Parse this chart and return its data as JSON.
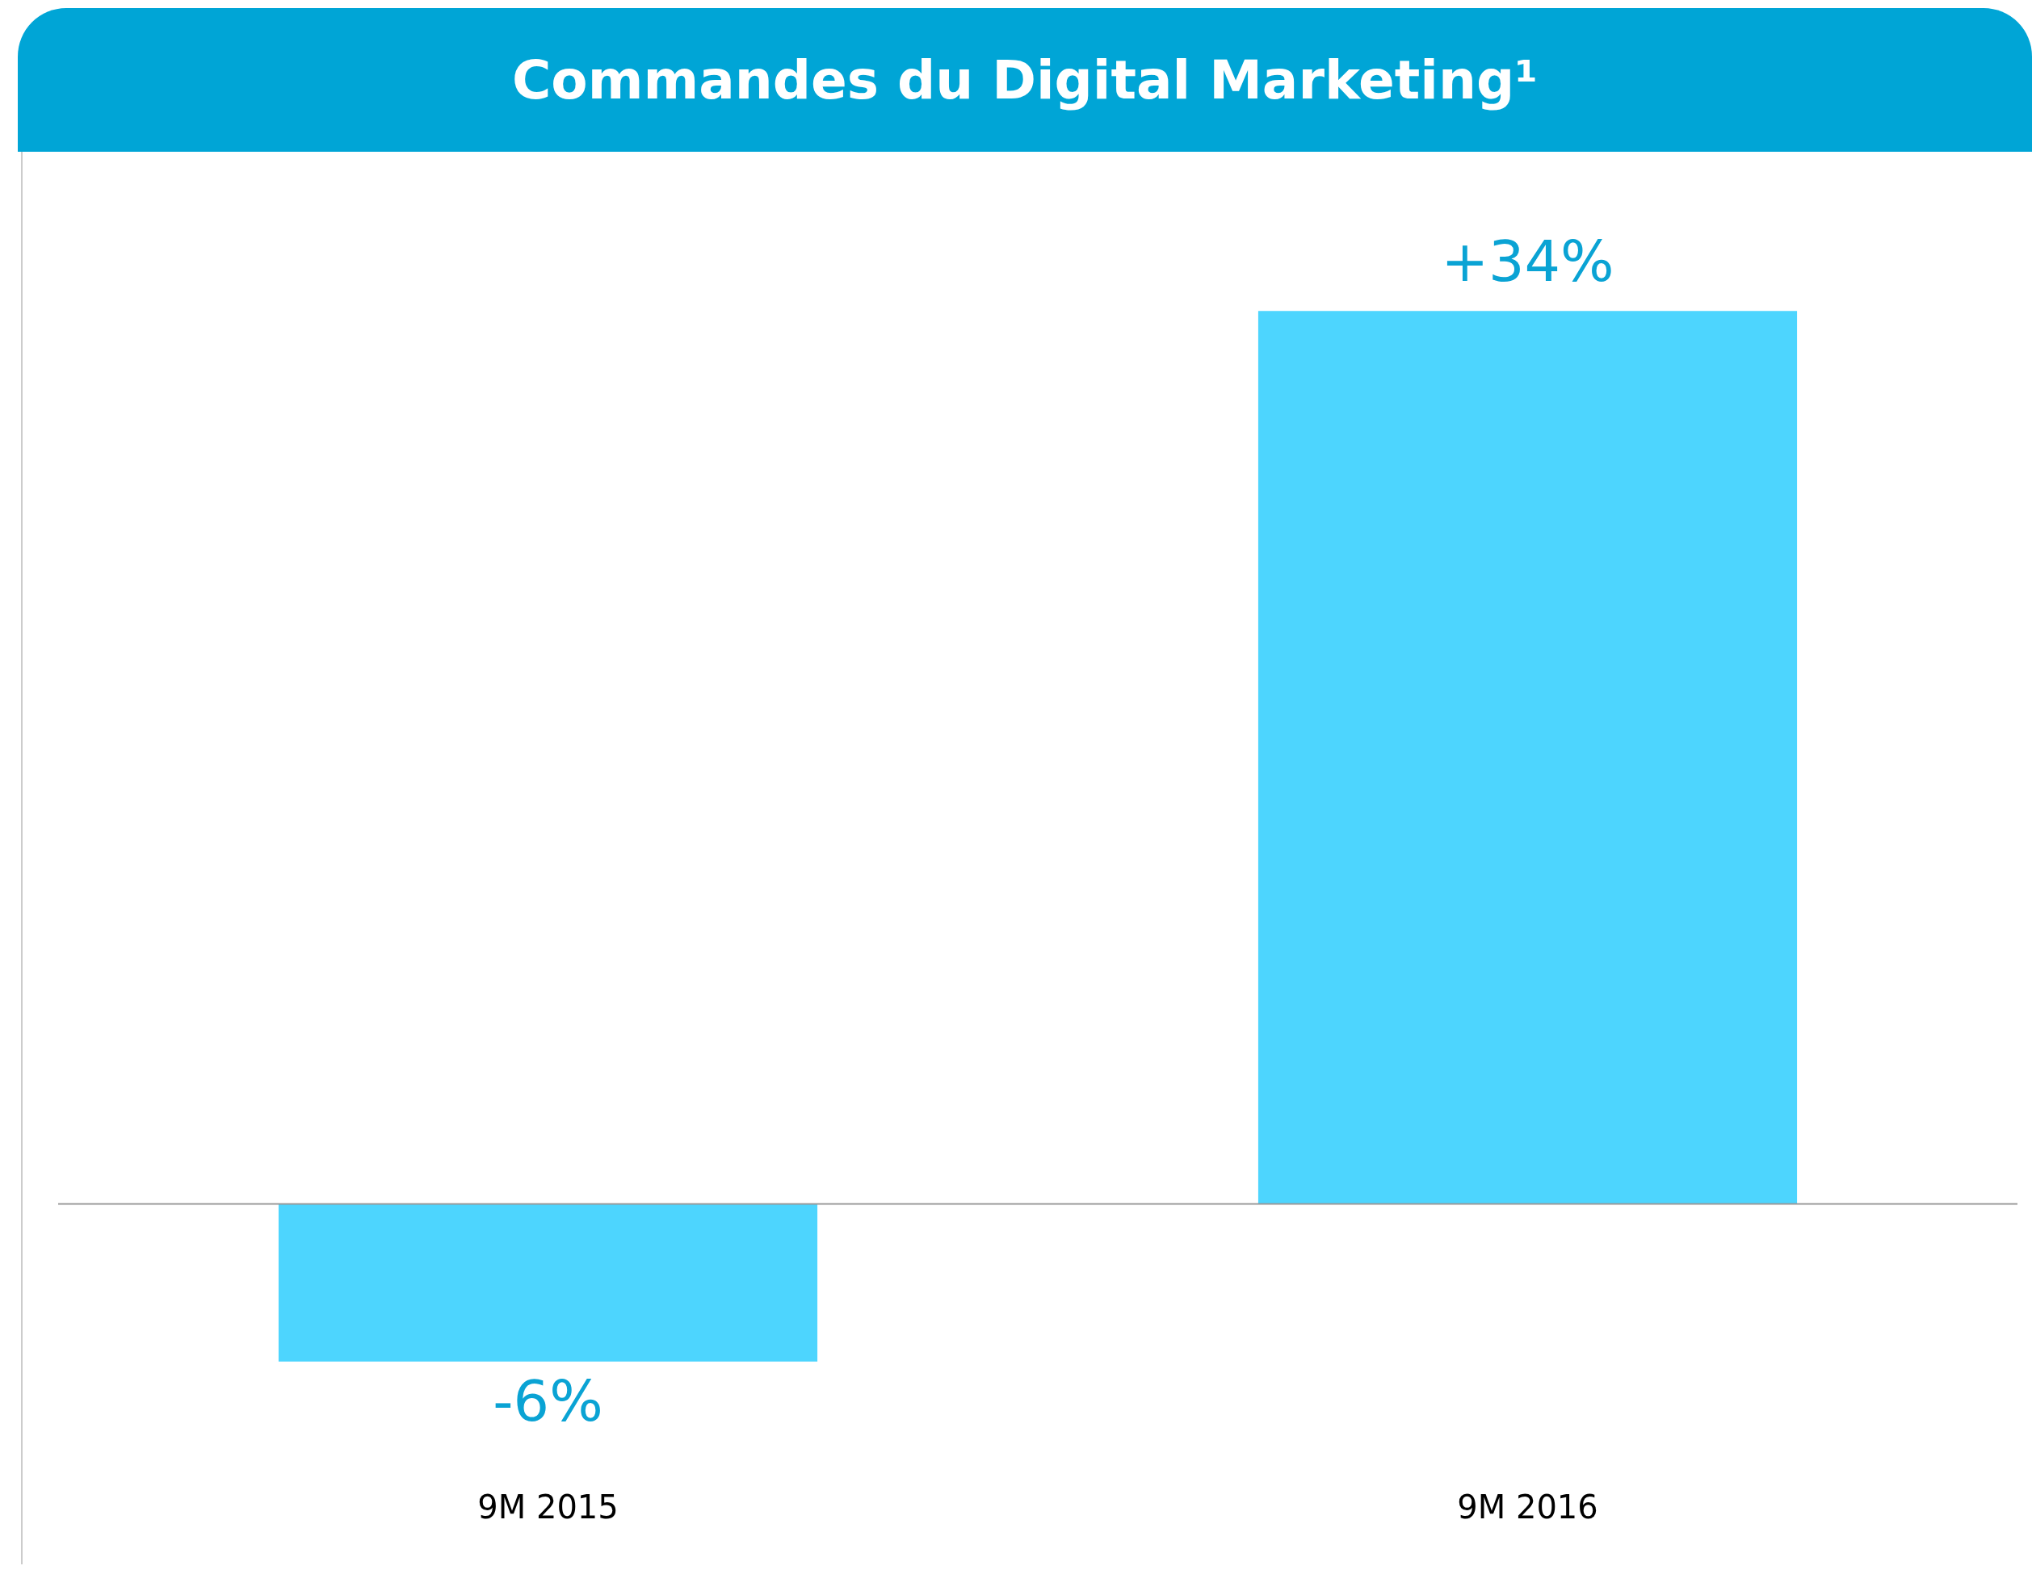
{
  "chart_data": {
    "type": "bar",
    "title": "Commandes du Digital Marketing¹",
    "categories": [
      "9M 2015",
      "9M 2016"
    ],
    "values": [
      -6,
      34
    ],
    "value_labels": [
      "-6%",
      "+34%"
    ],
    "color": "#4dd5fe",
    "tick_labels": "x",
    "grid": false,
    "legend": false
  }
}
